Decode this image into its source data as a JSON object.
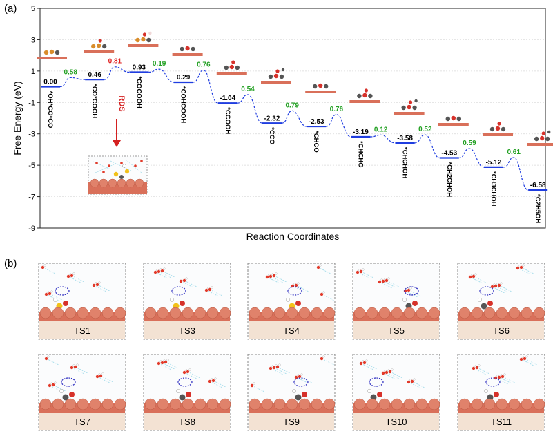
{
  "panel_labels": {
    "a": "(a)",
    "b": "(b)"
  },
  "chart_data": {
    "type": "line",
    "title": "",
    "xlabel": "Reaction Coordinates",
    "ylabel": "Free Energy (eV)",
    "ylim": [
      -9,
      5
    ],
    "yticks": [
      5,
      3,
      1,
      -1,
      -3,
      -5,
      -7,
      -9
    ],
    "grid": true,
    "series": [
      {
        "states": [
          {
            "species": "*OH*CO*CO",
            "energy": 0.0,
            "energy_label": "0.00"
          },
          {
            "species": "*CO*COOH",
            "energy": 0.46,
            "energy_label": "0.46"
          },
          {
            "species": "*COCOOH",
            "energy": 0.93,
            "energy_label": "0.93"
          },
          {
            "species": "*COHCOOH",
            "energy": 0.29,
            "energy_label": "0.29"
          },
          {
            "species": "*CCOOH",
            "energy": -1.04,
            "energy_label": "-1.04"
          },
          {
            "species": "*CCO",
            "energy": -2.32,
            "energy_label": "-2.32"
          },
          {
            "species": "*CHCO",
            "energy": -2.53,
            "energy_label": "-2.53"
          },
          {
            "species": "*CHCHO",
            "energy": -3.19,
            "energy_label": "-3.19"
          },
          {
            "species": "*CHCHOH",
            "energy": -3.58,
            "energy_label": "-3.58"
          },
          {
            "species": "*CH2CHOH",
            "energy": -4.53,
            "energy_label": "-4.53"
          },
          {
            "species": "*CH3CHOH",
            "energy": -5.12,
            "energy_label": "-5.12"
          },
          {
            "species": "*C2H5OH",
            "energy": -6.58,
            "energy_label": "-6.58"
          }
        ],
        "barriers": [
          {
            "value": 0.58,
            "label": "0.58",
            "color": "#22a022"
          },
          {
            "value": 0.81,
            "label": "0.81",
            "color": "#e02020"
          },
          {
            "value": 0.19,
            "label": "0.19",
            "color": "#22a022"
          },
          {
            "value": 0.76,
            "label": "0.76",
            "color": "#22a022"
          },
          {
            "value": 0.54,
            "label": "0.54",
            "color": "#22a022"
          },
          {
            "value": 0.79,
            "label": "0.79",
            "color": "#22a022"
          },
          {
            "value": 0.76,
            "label": "0.76",
            "color": "#22a022"
          },
          {
            "value": 0.12,
            "label": "0.12",
            "color": "#22a022"
          },
          {
            "value": 0.52,
            "label": "0.52",
            "color": "#22a022"
          },
          {
            "value": 0.59,
            "label": "0.59",
            "color": "#22a022"
          },
          {
            "value": 0.61,
            "label": "0.61",
            "color": "#22a022"
          }
        ]
      }
    ],
    "annotations": [
      {
        "text": "RDS",
        "color": "#d42020"
      }
    ]
  },
  "transition_states": {
    "row1": [
      "TS1",
      "TS3",
      "TS4",
      "TS5",
      "TS6"
    ],
    "row2": [
      "TS7",
      "TS8",
      "TS9",
      "TS10",
      "TS11"
    ]
  },
  "colors": {
    "level": "#1f3de0",
    "connector": "#1f3de0",
    "copper": "#d9705a",
    "label_strip": "#f3e2d3",
    "water": "#9ad8e8"
  }
}
